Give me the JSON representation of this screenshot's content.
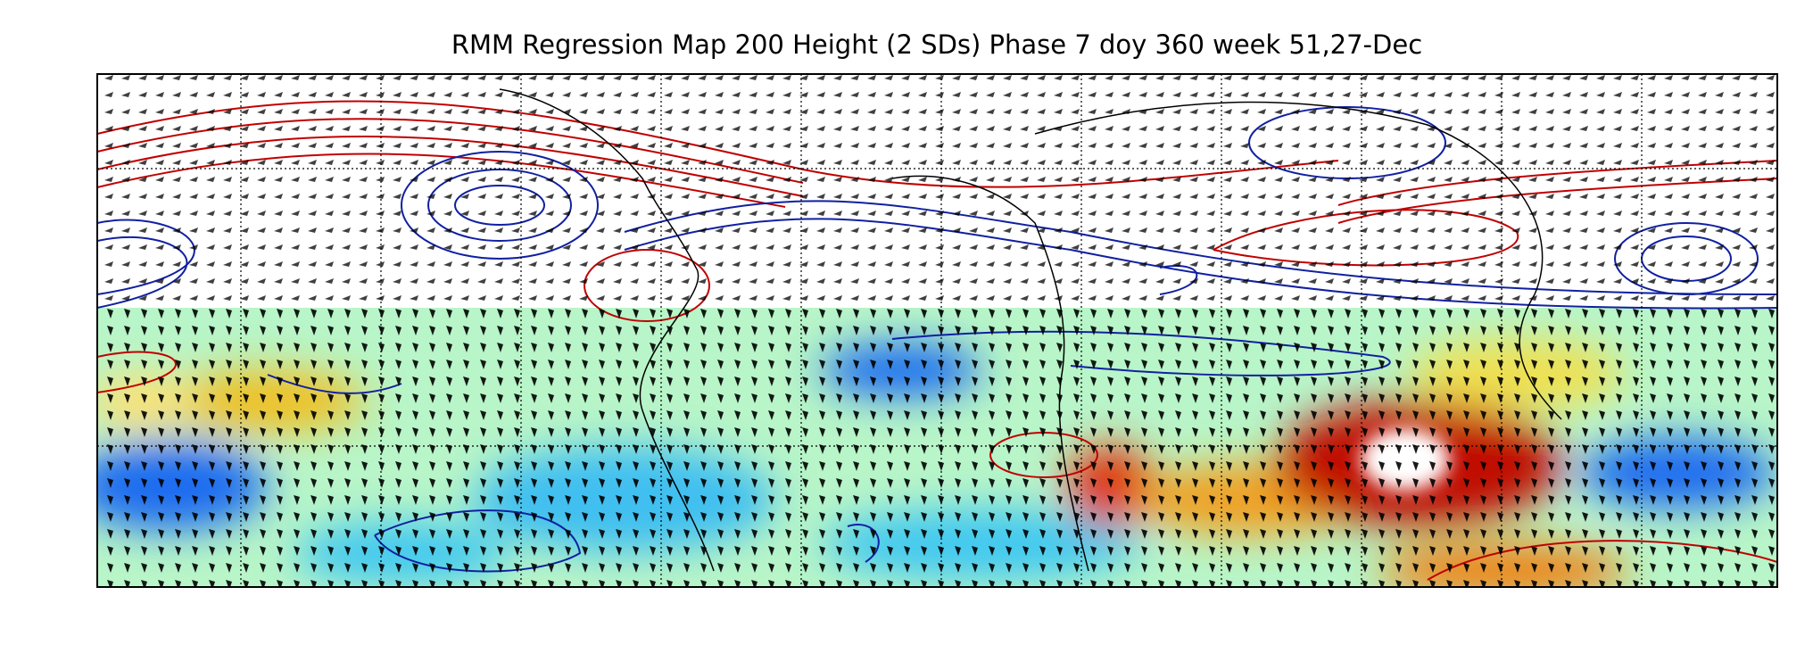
{
  "map": {
    "title": "RMM Regression Map 200 Height (2 SDs) Phase 7 doy 360 week 51,27-Dec"
  }
}
